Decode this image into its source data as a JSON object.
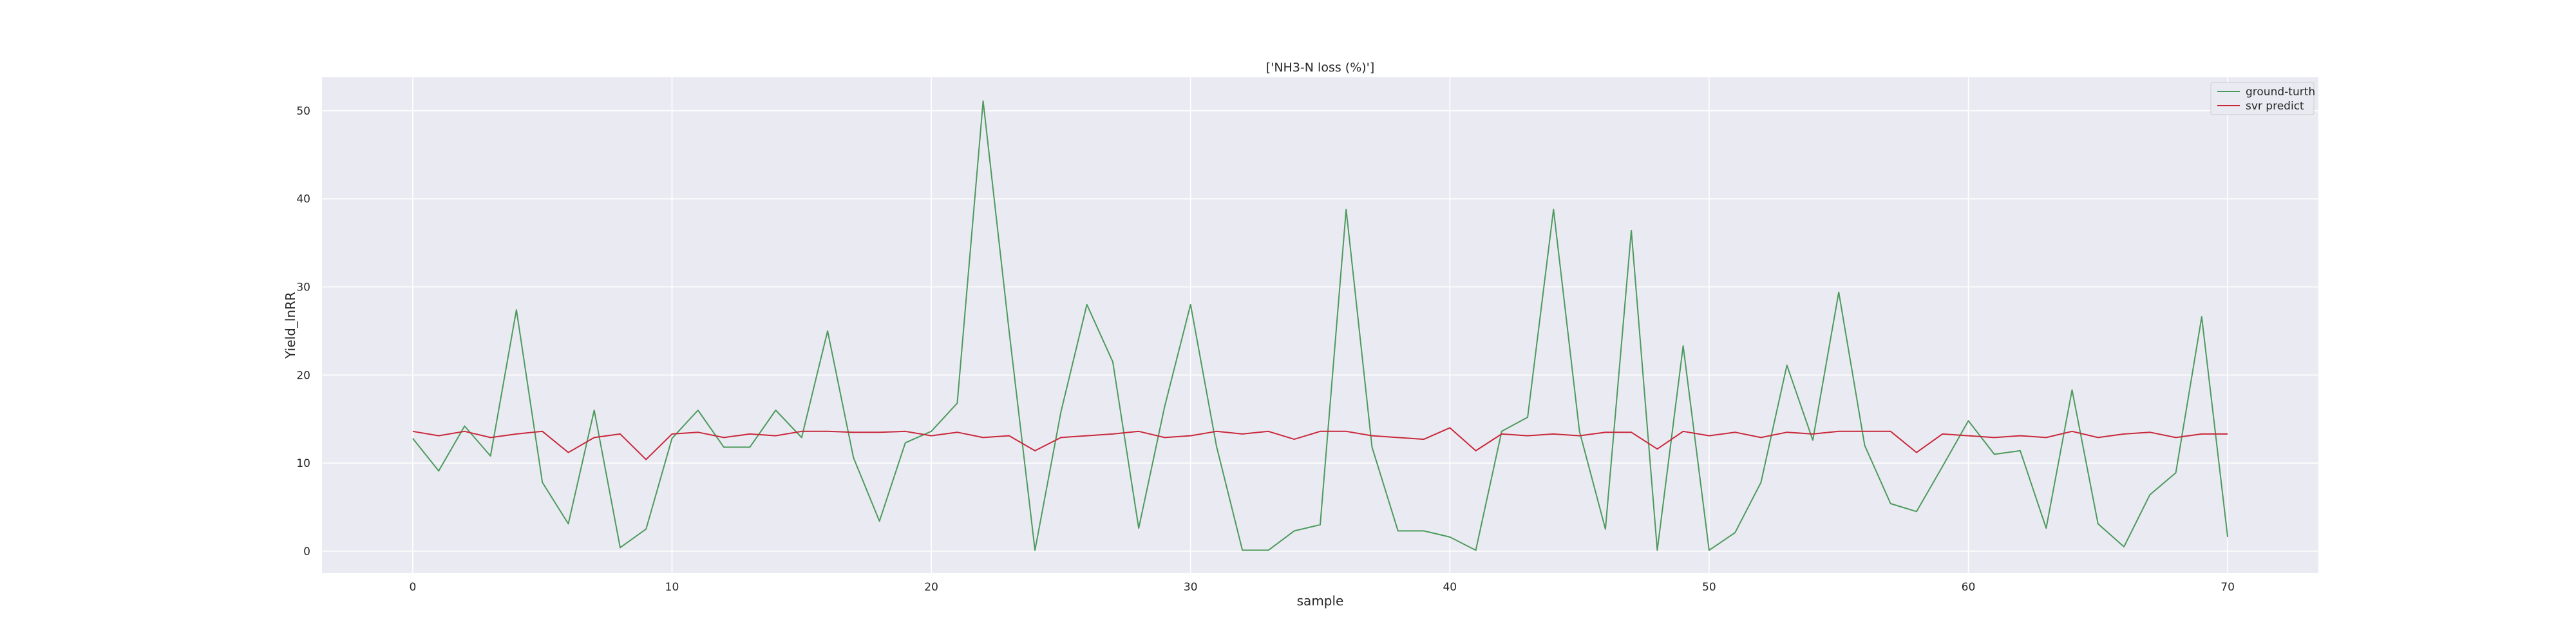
{
  "chart_data": {
    "type": "line",
    "title": "['NH3-N loss (%)']",
    "xlabel": "sample",
    "ylabel": "Yield_lnRR",
    "xlim": [
      -3.5,
      73.5
    ],
    "ylim": [
      -2.5,
      53.8
    ],
    "xticks": [
      0,
      10,
      20,
      30,
      40,
      50,
      60,
      70
    ],
    "yticks": [
      0,
      10,
      20,
      30,
      40,
      50
    ],
    "grid": true,
    "legend": "top-right",
    "x": [
      0,
      1,
      2,
      3,
      4,
      5,
      6,
      7,
      8,
      9,
      10,
      11,
      12,
      13,
      14,
      15,
      16,
      17,
      18,
      19,
      20,
      21,
      22,
      23,
      24,
      25,
      26,
      27,
      28,
      29,
      30,
      31,
      32,
      33,
      34,
      35,
      36,
      37,
      38,
      39,
      40,
      41,
      42,
      43,
      44,
      45,
      46,
      47,
      48,
      49,
      50,
      51,
      52,
      53,
      54,
      55,
      56,
      57,
      58,
      59,
      60,
      61,
      62,
      63,
      64,
      65,
      66,
      67,
      68,
      69,
      70
    ],
    "series": [
      {
        "name": "ground-turth",
        "color": "#4c9a5c",
        "values": [
          12.8,
          9.1,
          14.2,
          10.8,
          27.4,
          7.8,
          3.1,
          16.0,
          0.4,
          2.5,
          12.8,
          16.0,
          11.8,
          11.8,
          16.0,
          12.9,
          25.0,
          10.6,
          3.4,
          12.3,
          13.6,
          16.8,
          51.1,
          25.0,
          0.1,
          15.8,
          28.0,
          21.5,
          2.6,
          16.4,
          28.0,
          11.9,
          0.1,
          0.1,
          2.3,
          3.0,
          38.8,
          11.8,
          2.3,
          2.3,
          1.6,
          0.1,
          13.6,
          15.2,
          38.8,
          13.6,
          2.5,
          36.4,
          0.1,
          23.3,
          0.1,
          2.1,
          7.8,
          21.1,
          12.6,
          29.4,
          12.0,
          5.4,
          4.5,
          9.6,
          14.8,
          11.0,
          11.4,
          2.6,
          18.3,
          3.1,
          0.5,
          6.4,
          8.9,
          26.6,
          1.6
        ]
      },
      {
        "name": "svr predict",
        "color": "#c8283a",
        "values": [
          13.6,
          13.1,
          13.6,
          12.9,
          13.3,
          13.6,
          11.2,
          12.9,
          13.3,
          10.4,
          13.3,
          13.5,
          12.9,
          13.3,
          13.1,
          13.6,
          13.6,
          13.5,
          13.5,
          13.6,
          13.1,
          13.5,
          12.9,
          13.1,
          11.4,
          12.9,
          13.1,
          13.3,
          13.6,
          12.9,
          13.1,
          13.6,
          13.3,
          13.6,
          12.7,
          13.6,
          13.6,
          13.1,
          12.9,
          12.7,
          14.0,
          11.4,
          13.3,
          13.1,
          13.3,
          13.1,
          13.5,
          13.5,
          11.6,
          13.6,
          13.1,
          13.5,
          12.9,
          13.5,
          13.3,
          13.6,
          13.6,
          13.6,
          11.2,
          13.3,
          13.1,
          12.9,
          13.1,
          12.9,
          13.6,
          12.9,
          13.3,
          13.5,
          12.9,
          13.3,
          13.3
        ]
      }
    ]
  }
}
